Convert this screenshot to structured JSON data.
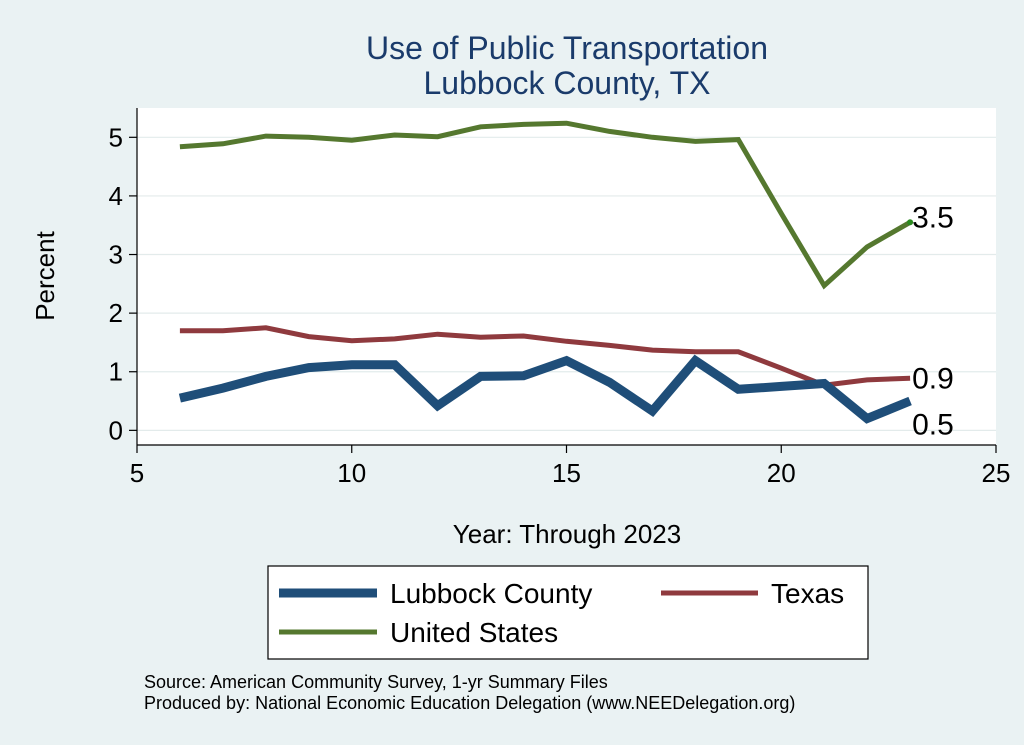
{
  "chart_data": {
    "type": "line",
    "title": "Use of Public Transportation",
    "subtitle": "Lubbock County, TX",
    "xlabel": "Year: Through 2023",
    "ylabel": "Percent",
    "xlim": [
      5,
      25
    ],
    "ylim": [
      -0.25,
      5.5
    ],
    "xticks": [
      5,
      10,
      15,
      20,
      25
    ],
    "yticks": [
      0,
      1,
      2,
      3,
      4,
      5
    ],
    "grid": true,
    "legend_position": "bottom",
    "x": [
      6,
      7,
      8,
      9,
      10,
      11,
      12,
      13,
      14,
      15,
      16,
      17,
      18,
      19,
      20,
      21,
      22,
      23
    ],
    "series": [
      {
        "name": "Lubbock County",
        "color": "#1f4e79",
        "values": [
          0.55,
          0.72,
          0.92,
          1.07,
          1.12,
          1.12,
          0.42,
          0.92,
          0.93,
          1.19,
          0.82,
          0.33,
          1.19,
          0.7,
          0.75,
          0.8,
          0.2,
          0.5
        ],
        "end_label": "0.5"
      },
      {
        "name": "Texas",
        "color": "#8f3a3e",
        "values": [
          1.7,
          1.7,
          1.75,
          1.6,
          1.53,
          1.56,
          1.64,
          1.59,
          1.61,
          1.52,
          1.45,
          1.37,
          1.34,
          1.34,
          1.06,
          0.77,
          0.86,
          0.89
        ],
        "end_label": "0.9"
      },
      {
        "name": "United States",
        "color": "#55782f",
        "values": [
          4.84,
          4.89,
          5.02,
          5.0,
          4.95,
          5.04,
          5.01,
          5.18,
          5.22,
          5.24,
          5.1,
          5.0,
          4.93,
          4.96,
          3.7,
          2.47,
          3.13,
          3.55
        ],
        "end_label": "3.5"
      }
    ]
  },
  "notes": {
    "source": "Source: American Community Survey, 1-yr Summary Files",
    "produced": "Produced by: National Economic Education Delegation (www.NEEDelegation.org)"
  }
}
